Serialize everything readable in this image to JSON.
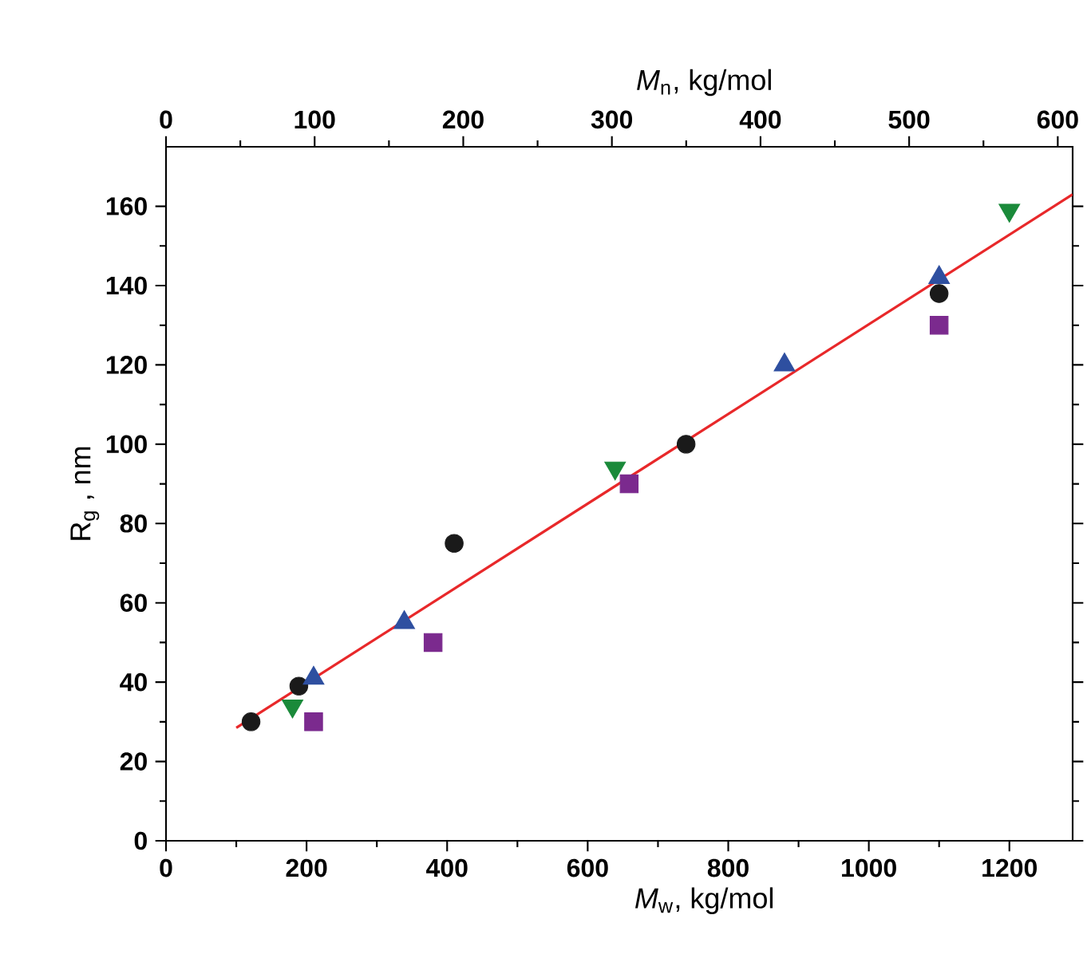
{
  "chart_data": {
    "type": "scatter",
    "xlabel": "*M*$_{w}$,   kg/mol",
    "x2label": "*M*$_{n}$,   kg/mol",
    "ylabel": "R$_{g}$ ,   nm",
    "xlim": [
      0,
      1290
    ],
    "xticks": [
      0,
      200,
      400,
      600,
      800,
      1000,
      1200
    ],
    "x2lim": [
      0,
      610
    ],
    "x2ticks": [
      0,
      100,
      200,
      300,
      400,
      500,
      600
    ],
    "ylim": [
      0,
      175
    ],
    "yticks": [
      0,
      20,
      40,
      60,
      80,
      100,
      120,
      140,
      160
    ],
    "series": [
      {
        "color": "#1a1a1a",
        "marker": "circle",
        "x": [
          121,
          189,
          410,
          740,
          1100
        ],
        "values": [
          30,
          39,
          75,
          100,
          138
        ]
      },
      {
        "color": "#2e4fa0",
        "marker": "triangle",
        "x": [
          210,
          339,
          880,
          1100
        ],
        "values": [
          41,
          55,
          120,
          142
        ]
      },
      {
        "color": "#1a8a3a",
        "marker": "triangle-down",
        "x": [
          180,
          639,
          1200
        ],
        "values": [
          34,
          94,
          159
        ]
      },
      {
        "color": "#7b2a8e",
        "marker": "square",
        "x": [
          210,
          380,
          659,
          1100
        ],
        "values": [
          30,
          50,
          90,
          130
        ]
      },
      {
        "type": "line",
        "color": "#e8282a",
        "marker": "none",
        "x": [
          100,
          1290
        ],
        "values": [
          28.5,
          163
        ]
      }
    ]
  }
}
